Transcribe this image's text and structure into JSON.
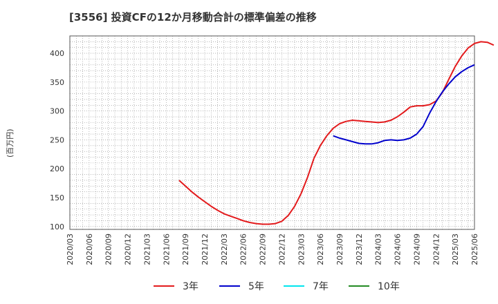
{
  "chart_data": {
    "type": "line",
    "title": "[3556]  投資CFの12か月移動合計の標準偏差の推移",
    "ylabel": "(百万円)",
    "xlabel": "",
    "ylim": [
      95,
      430
    ],
    "yticks": [
      100,
      150,
      200,
      250,
      300,
      350,
      400
    ],
    "x_tick_labels": [
      "2020/03",
      "2020/06",
      "2020/09",
      "2020/12",
      "2021/03",
      "2021/06",
      "2021/09",
      "2021/12",
      "2022/03",
      "2022/06",
      "2022/09",
      "2022/12",
      "2023/03",
      "2023/06",
      "2023/09",
      "2023/12",
      "2024/03",
      "2024/06",
      "2024/09",
      "2024/12",
      "2025/03",
      "2025/06"
    ],
    "x_start": "2020/03",
    "x_end": "2025/06",
    "grid": true,
    "legend_position": "bottom",
    "series": [
      {
        "name": "3年",
        "color": "#e31a1c",
        "start": "2021/08",
        "values": [
          180,
          170,
          160,
          151,
          143,
          135,
          128,
          122,
          118,
          114,
          110,
          107,
          105,
          104,
          104,
          105,
          109,
          119,
          135,
          157,
          185,
          218,
          240,
          257,
          270,
          278,
          282,
          284,
          283,
          282,
          281,
          280,
          281,
          284,
          290,
          298,
          307,
          309,
          309,
          311,
          317,
          332,
          355,
          377,
          395,
          409,
          417,
          420,
          419,
          414
        ]
      },
      {
        "name": "5年",
        "color": "#0000cc",
        "start": "2023/08",
        "values": [
          257,
          253,
          250,
          247,
          244,
          243,
          243,
          245,
          249,
          250,
          249,
          250,
          253,
          260,
          273,
          296,
          316,
          333,
          347,
          359,
          368,
          375,
          380
        ]
      },
      {
        "name": "7年",
        "color": "#00e5ee",
        "start": null,
        "values": []
      },
      {
        "name": "10年",
        "color": "#228b22",
        "start": null,
        "values": []
      }
    ]
  }
}
